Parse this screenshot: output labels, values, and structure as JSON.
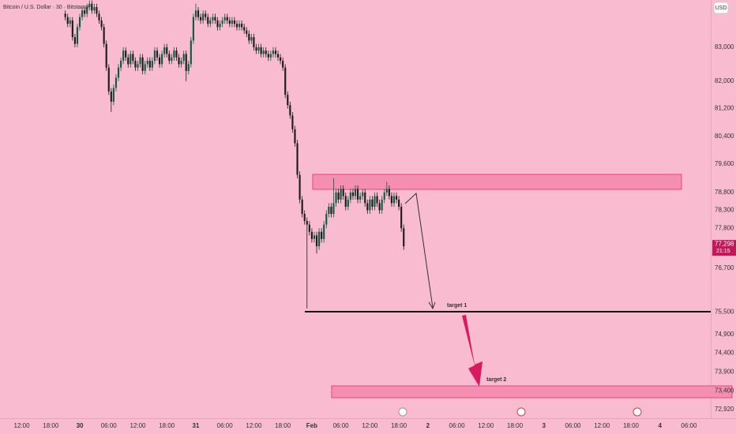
{
  "chart_data": {
    "type": "candlestick",
    "title": "Bitcoin / U.S. Dollar · 30 · Bitstamp",
    "currency": "USD",
    "log_scale": true,
    "up_color": "#0e5c45",
    "down_color": "#1c1c1c",
    "ylim": [
      72690,
      84414
    ],
    "yticks": [
      {
        "value": 83000,
        "label": "83,000"
      },
      {
        "value": 82000,
        "label": "82,000"
      },
      {
        "value": 81200,
        "label": "81,200"
      },
      {
        "value": 80400,
        "label": "80,400"
      },
      {
        "value": 79600,
        "label": "79,600"
      },
      {
        "value": 78800,
        "label": "78,800"
      },
      {
        "value": 78300,
        "label": "78,300"
      },
      {
        "value": 77800,
        "label": "77,800"
      },
      {
        "value": 76700,
        "label": "76,700"
      },
      {
        "value": 75500,
        "label": "75,500"
      },
      {
        "value": 74900,
        "label": "74,900"
      },
      {
        "value": 74400,
        "label": "74,400"
      },
      {
        "value": 73900,
        "label": "73,900"
      },
      {
        "value": 73400,
        "label": "73,400"
      },
      {
        "value": 72920,
        "label": "72,920"
      }
    ],
    "xlim": [
      -27,
      267
    ],
    "xticks": [
      {
        "value": -18,
        "label": "12:00"
      },
      {
        "value": -6,
        "label": "18:00"
      },
      {
        "value": 6,
        "label": "30"
      },
      {
        "value": 18,
        "label": "06:00"
      },
      {
        "value": 30,
        "label": "12:00"
      },
      {
        "value": 42,
        "label": "18:00"
      },
      {
        "value": 54,
        "label": "31"
      },
      {
        "value": 66,
        "label": "06:00"
      },
      {
        "value": 78,
        "label": "12:00"
      },
      {
        "value": 90,
        "label": "18:00"
      },
      {
        "value": 102,
        "label": "Feb"
      },
      {
        "value": 114,
        "label": "06:00"
      },
      {
        "value": 126,
        "label": "12:00"
      },
      {
        "value": 138,
        "label": "18:00"
      },
      {
        "value": 150,
        "label": "2"
      },
      {
        "value": 162,
        "label": "06:00"
      },
      {
        "value": 174,
        "label": "12:00"
      },
      {
        "value": 186,
        "label": "18:00"
      },
      {
        "value": 198,
        "label": "3"
      },
      {
        "value": 210,
        "label": "06:00"
      },
      {
        "value": 222,
        "label": "12:00"
      },
      {
        "value": 234,
        "label": "18:00"
      },
      {
        "value": 246,
        "label": "4"
      },
      {
        "value": 258,
        "label": "06:00"
      }
    ],
    "open": [
      84000,
      83900,
      83700,
      83800,
      83300,
      83100,
      83600,
      83900,
      84100,
      84000,
      84200,
      84300,
      84100,
      84200,
      84000,
      83800,
      83600,
      83100,
      82400,
      81700,
      81400,
      81800,
      82100,
      82400,
      82600,
      82900,
      82700,
      82500,
      82800,
      82600,
      82400,
      82500,
      82700,
      82300,
      82500,
      82600,
      82400,
      82600,
      82900,
      82700,
      82500,
      82800,
      83000,
      82800,
      82600,
      82700,
      82900,
      82700,
      82500,
      82600,
      82800,
      82300,
      82500,
      83200,
      83900,
      84100,
      83900,
      83800,
      84000,
      83900,
      83700,
      83800,
      83900,
      83800,
      83600,
      83700,
      83800,
      83900,
      83800,
      83700,
      83800,
      83700,
      83600,
      83700,
      83600,
      83500,
      83400,
      83200,
      83300,
      83000,
      82900,
      83000,
      82800,
      82900,
      82800,
      82700,
      82800,
      82900,
      82800,
      82700,
      82600,
      82400,
      81600,
      81300,
      81000,
      80600,
      80200,
      79300,
      78600,
      78200,
      78000,
      77900,
      77700,
      77500,
      77600,
      77300,
      77700,
      77500,
      77900,
      78200,
      78400,
      78200,
      78500,
      78800,
      78600,
      78900,
      78700,
      78400,
      78600,
      78800,
      78700,
      78900,
      78600,
      78700,
      78800,
      78500,
      78300,
      78600,
      78400,
      78700,
      78500,
      78300,
      78600,
      78800,
      78900,
      78700,
      78500,
      78700,
      78600,
      78400,
      77800
    ],
    "high": [
      84100,
      84000,
      83900,
      83900,
      83400,
      83700,
      84000,
      84200,
      84200,
      84300,
      84400,
      84400,
      84300,
      84300,
      84100,
      83900,
      83700,
      83200,
      82500,
      81800,
      81900,
      82200,
      82500,
      82700,
      83000,
      83000,
      82800,
      82900,
      82900,
      82700,
      82600,
      82800,
      82800,
      82600,
      82700,
      82700,
      82700,
      83000,
      83000,
      82800,
      82900,
      83100,
      83100,
      82900,
      82800,
      83000,
      83000,
      82800,
      82700,
      82900,
      82900,
      82600,
      83300,
      84000,
      84300,
      84200,
      84000,
      84100,
      84100,
      84000,
      83900,
      84000,
      84000,
      83900,
      83800,
      83900,
      84000,
      84000,
      83900,
      83900,
      83900,
      83800,
      83800,
      83800,
      83700,
      83600,
      83500,
      83400,
      83400,
      83100,
      83100,
      83100,
      83000,
      83000,
      82900,
      82900,
      83000,
      83000,
      82900,
      82800,
      82700,
      82500,
      81700,
      81400,
      81100,
      80700,
      80300,
      79400,
      78700,
      78300,
      78100,
      78000,
      77800,
      77700,
      77700,
      77800,
      77800,
      78000,
      78300,
      78500,
      78500,
      79200,
      78900,
      78900,
      79000,
      79000,
      78800,
      78700,
      78900,
      78900,
      79000,
      79000,
      78800,
      78900,
      78900,
      78600,
      78700,
      78700,
      78800,
      78800,
      78600,
      78700,
      78900,
      79100,
      79000,
      78800,
      78800,
      78800,
      78700,
      78500,
      77900
    ],
    "low": [
      83800,
      83600,
      83600,
      83200,
      83000,
      83000,
      83500,
      83800,
      83900,
      83900,
      84100,
      84000,
      84000,
      83900,
      83700,
      83500,
      83000,
      82300,
      81600,
      81100,
      81300,
      81700,
      82000,
      82300,
      82500,
      82600,
      82400,
      82400,
      82500,
      82300,
      82300,
      82400,
      82200,
      82200,
      82400,
      82300,
      82300,
      82500,
      82600,
      82400,
      82400,
      82700,
      82700,
      82500,
      82500,
      82600,
      82600,
      82400,
      82400,
      82500,
      82000,
      82200,
      82400,
      83100,
      83800,
      83800,
      83700,
      83700,
      83800,
      83600,
      83600,
      83700,
      83700,
      83500,
      83500,
      83600,
      83700,
      83700,
      83600,
      83600,
      83600,
      83500,
      83500,
      83500,
      83400,
      83300,
      83100,
      83100,
      82900,
      82800,
      82800,
      82700,
      82700,
      82700,
      82600,
      82600,
      82700,
      82700,
      82600,
      82500,
      82300,
      81500,
      81200,
      80900,
      80500,
      80100,
      79200,
      78500,
      78100,
      77900,
      75600,
      77600,
      77400,
      77400,
      77100,
      77200,
      77400,
      77400,
      77800,
      78100,
      78100,
      78100,
      78400,
      78500,
      78500,
      78600,
      78300,
      78300,
      78500,
      78600,
      78600,
      78500,
      78500,
      78600,
      78400,
      78200,
      78200,
      78300,
      78300,
      78400,
      78200,
      78200,
      78500,
      78700,
      78600,
      78400,
      78400,
      78500,
      78300,
      77700,
      77200
    ],
    "close": [
      83900,
      83700,
      83800,
      83300,
      83100,
      83600,
      83900,
      84100,
      84000,
      84200,
      84300,
      84100,
      84200,
      84000,
      83800,
      83600,
      83100,
      82400,
      81700,
      81400,
      81800,
      82100,
      82400,
      82600,
      82900,
      82700,
      82500,
      82800,
      82600,
      82400,
      82500,
      82700,
      82300,
      82500,
      82600,
      82400,
      82600,
      82900,
      82700,
      82500,
      82800,
      83000,
      82800,
      82600,
      82700,
      82900,
      82700,
      82500,
      82600,
      82800,
      82300,
      82500,
      83200,
      83900,
      84100,
      83900,
      83800,
      84000,
      83900,
      83700,
      83800,
      83900,
      83800,
      83600,
      83700,
      83800,
      83900,
      83800,
      83700,
      83800,
      83700,
      83600,
      83700,
      83600,
      83500,
      83400,
      83200,
      83300,
      83000,
      82900,
      83000,
      82800,
      82900,
      82800,
      82700,
      82800,
      82900,
      82800,
      82700,
      82600,
      82400,
      81600,
      81300,
      81000,
      80600,
      80200,
      79300,
      78600,
      78200,
      78000,
      77900,
      77700,
      77500,
      77600,
      77300,
      77700,
      77500,
      77900,
      78200,
      78400,
      78200,
      78500,
      78800,
      78600,
      78900,
      78700,
      78400,
      78600,
      78800,
      78700,
      78900,
      78600,
      78700,
      78800,
      78500,
      78300,
      78600,
      78400,
      78700,
      78500,
      78300,
      78600,
      78800,
      78900,
      78700,
      78500,
      78700,
      78600,
      78400,
      77800,
      77298
    ],
    "last_price_label": "77,298",
    "countdown": "21:15",
    "annotations": [
      "target 1",
      "target 2"
    ]
  }
}
